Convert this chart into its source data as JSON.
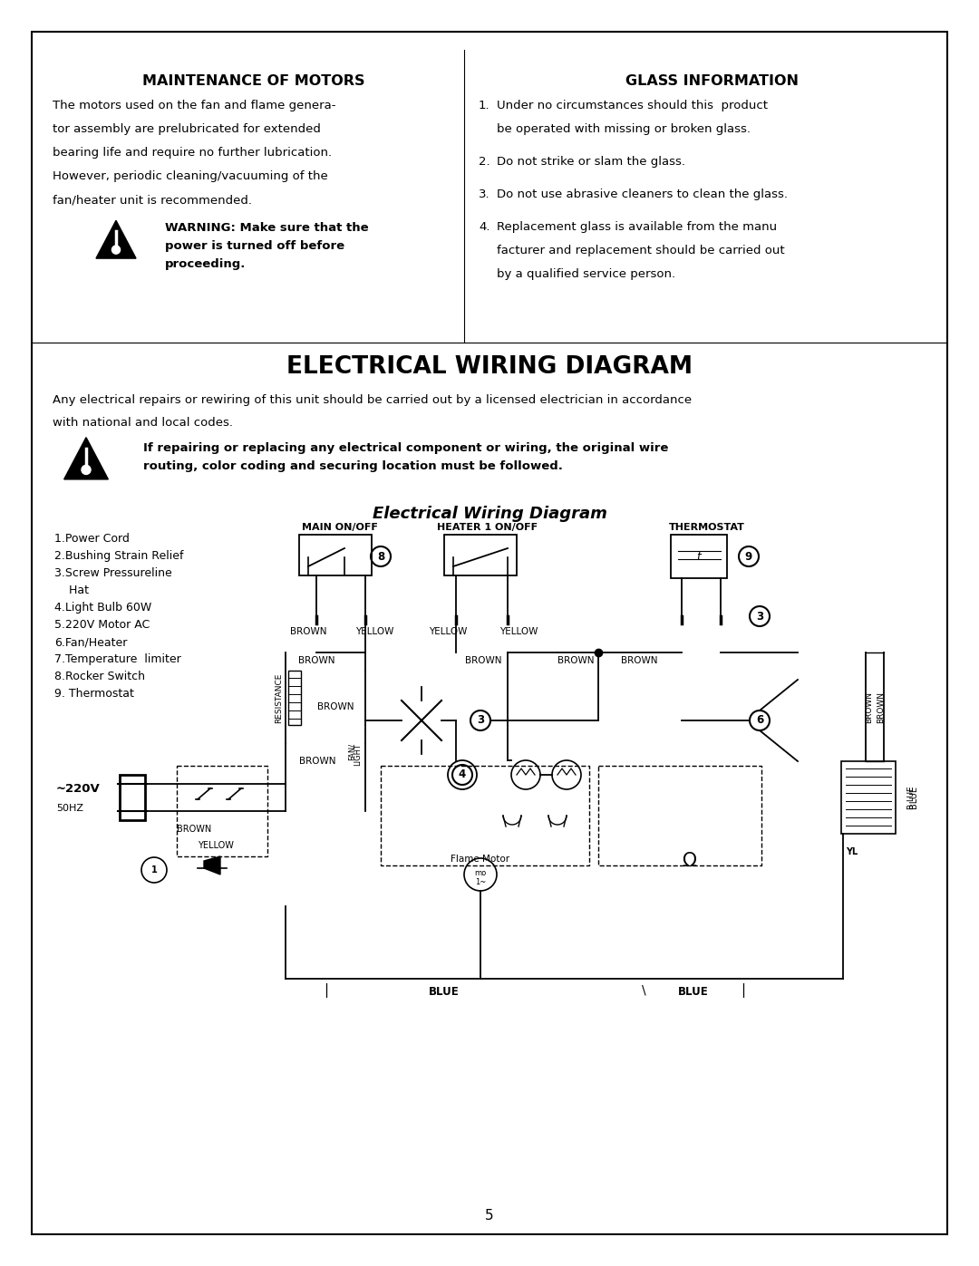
{
  "bg_color": "#ffffff",
  "page_number": "5",
  "maintenance_title": "MAINTENANCE OF MOTORS",
  "maintenance_lines": [
    "The motors used on the fan and flame genera-",
    "tor assembly are prelubricated for extended",
    "bearing life and require no further lubrication.",
    "However, periodic cleaning/vacuuming of the",
    "fan/heater unit is recommended."
  ],
  "warning1_text": "WARNING: Make sure that the\npower is turned off before\nproceeding.",
  "glass_title": "GLASS INFORMATION",
  "glass_items": [
    [
      "Under no circumstances should this  product",
      "be operated with missing or broken glass."
    ],
    [
      "Do not strike or slam the glass."
    ],
    [
      "Do not use abrasive cleaners to clean the glass."
    ],
    [
      "Replacement glass is available from the manu",
      "facturer and replacement should be carried out",
      "by a qualified service person."
    ]
  ],
  "electrical_title": "ELECTRICAL WIRING DIAGRAM",
  "electrical_line1": "Any electrical repairs or rewiring of this unit should be carried out by a licensed electrician in accordance",
  "electrical_line2": "with national and local codes.",
  "warning2_text": "If repairing or replacing any electrical component or wiring, the original wire\nrouting, color coding and securing location must be followed.",
  "diagram_title": "Electrical Wiring Diagram",
  "legend_items": [
    "1.Power Cord",
    "2.Bushing Strain Relief",
    "3.Screw Pressureline",
    "    Hat",
    "4.Light Bulb 60W",
    "5.220V Motor AC",
    "6.Fan/Heater",
    "7.Temperature  limiter",
    "8.Rocker Switch",
    "9. Thermostat"
  ]
}
